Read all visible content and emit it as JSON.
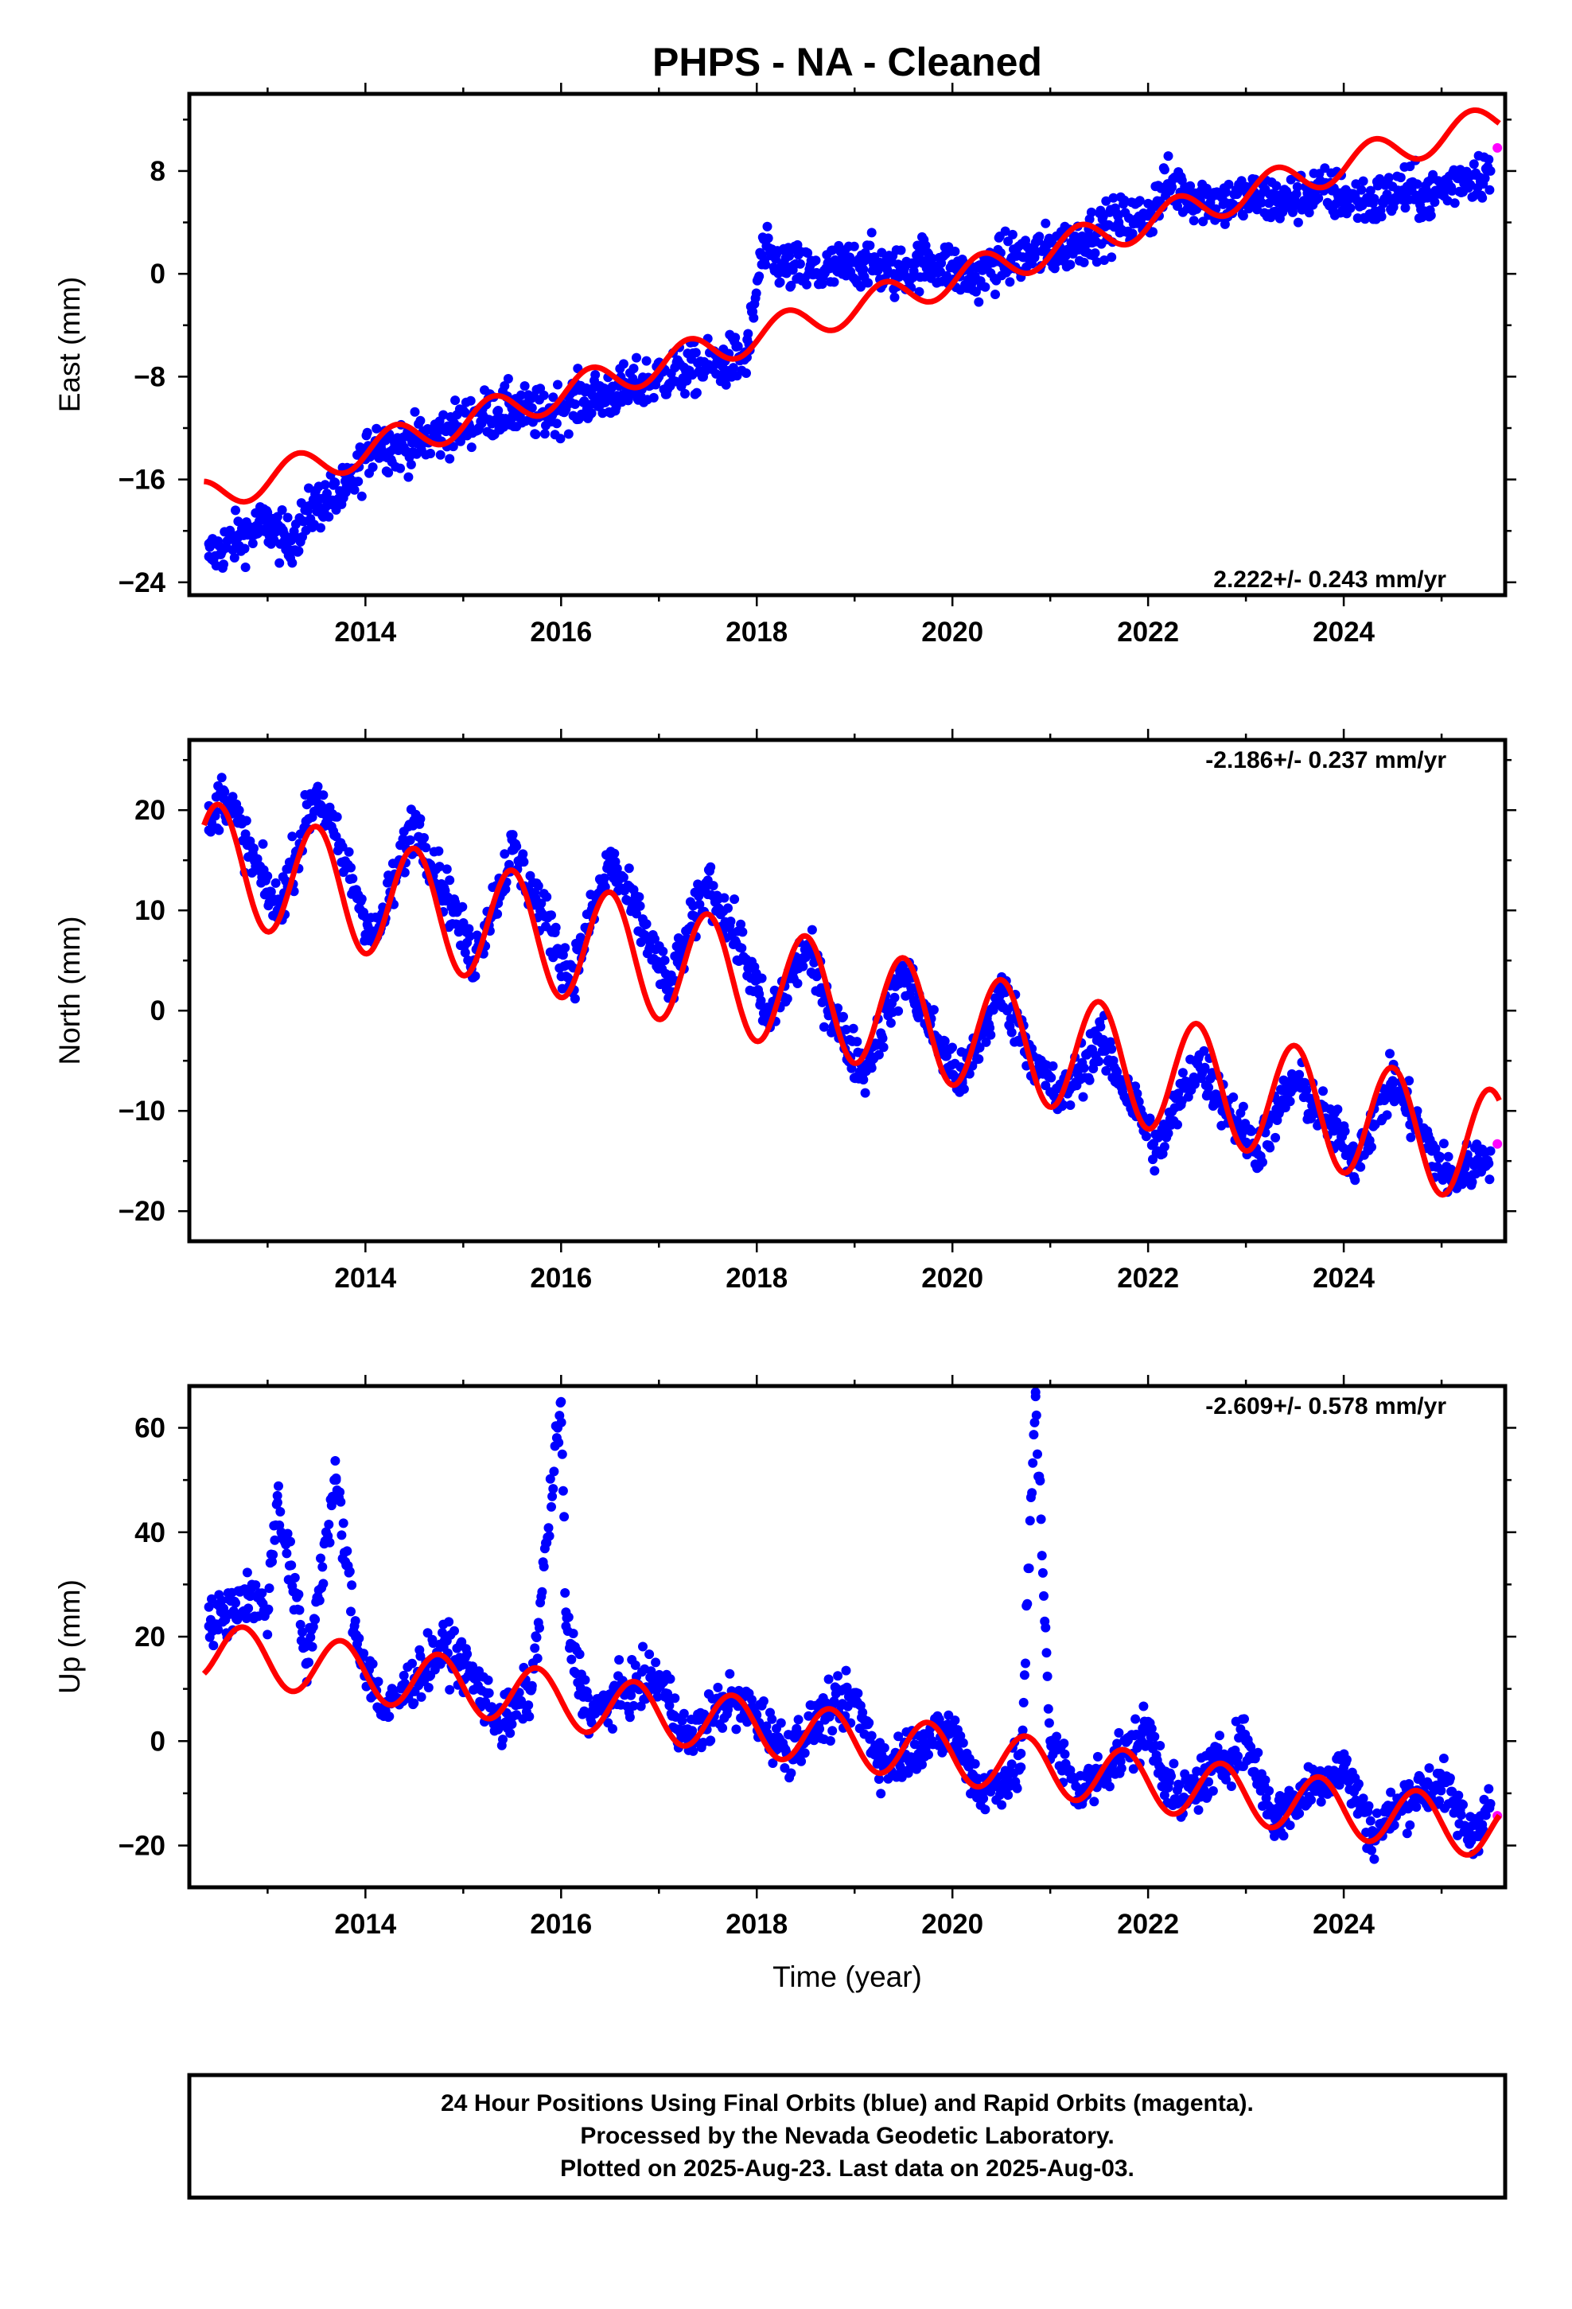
{
  "title": "PHPS  - NA - Cleaned",
  "colors": {
    "final_orbits": "#0000ff",
    "rapid_orbits": "#ff00ff",
    "model": "#ff0000",
    "frame": "#000000"
  },
  "chart_data": [
    {
      "type": "scatter",
      "component": "east",
      "ylabel": "East (mm)",
      "xlabel": "",
      "xlim": [
        2012.2,
        2025.65
      ],
      "ylim": [
        -25,
        14
      ],
      "yticks": [
        -24,
        -16,
        -8,
        0,
        8
      ],
      "yticklabels": [
        "−24",
        "−16",
        "−8",
        "0",
        "8"
      ],
      "xticks": [
        2014,
        2016,
        2018,
        2020,
        2022,
        2024
      ],
      "xticklabels": [
        "2014",
        "2016",
        "2018",
        "2020",
        "2022",
        "2024"
      ],
      "rate": "2.222+/- 0.243 mm/yr",
      "rate_position": "bottom-right",
      "series": [
        {
          "name": "Final Orbits",
          "color": "#0000ff",
          "x": [
            2012.4,
            2012.7,
            2013.0,
            2013.2,
            2013.5,
            2013.8,
            2014.1,
            2014.3,
            2014.6,
            2014.9,
            2015.2,
            2015.5,
            2015.8,
            2016.1,
            2016.4,
            2016.7,
            2017.0,
            2017.3,
            2017.6,
            2017.9,
            2018.05,
            2018.3,
            2018.6,
            2018.9,
            2019.1,
            2019.4,
            2019.7,
            2020.0,
            2020.2,
            2020.5,
            2020.8,
            2021.1,
            2021.4,
            2021.7,
            2022.0,
            2022.2,
            2022.5,
            2022.8,
            2023.1,
            2023.4,
            2023.7,
            2024.0,
            2024.3,
            2024.6,
            2024.9,
            2025.2,
            2025.5
          ],
          "y": [
            -22,
            -20.5,
            -19.5,
            -21,
            -18,
            -17,
            -13,
            -13.5,
            -13,
            -12,
            -11,
            -10.5,
            -11,
            -10,
            -9.5,
            -9,
            -8,
            -7.5,
            -7,
            -6.5,
            1.5,
            0.5,
            0,
            0.5,
            1,
            0,
            1,
            0.5,
            -0.5,
            1,
            1.5,
            2,
            3,
            4,
            4.5,
            7,
            6,
            5.5,
            6,
            5.5,
            6.5,
            6,
            5.5,
            6.5,
            6,
            7.5,
            8
          ]
        },
        {
          "name": "Rapid Orbits",
          "color": "#ff00ff",
          "x": [
            2025.57
          ],
          "y": [
            9.8
          ]
        },
        {
          "name": "Model",
          "color": "#ff0000",
          "model": {
            "t0": 2012.3,
            "intercept": -17.5,
            "rate": 2.222,
            "amplitude": 1.3,
            "phase_year": 0.3,
            "steps": [
              {
                "year": 2018.0,
                "offset": 0
              }
            ]
          }
        }
      ]
    },
    {
      "type": "scatter",
      "component": "north",
      "ylabel": "North (mm)",
      "xlabel": "",
      "xlim": [
        2012.2,
        2025.65
      ],
      "ylim": [
        -23,
        27
      ],
      "yticks": [
        -20,
        -10,
        0,
        10,
        20
      ],
      "yticklabels": [
        "−20",
        "−10",
        "0",
        "10",
        "20"
      ],
      "xticks": [
        2014,
        2016,
        2018,
        2020,
        2022,
        2024
      ],
      "xticklabels": [
        "2014",
        "2016",
        "2018",
        "2020",
        "2022",
        "2024"
      ],
      "rate": "-2.186+/- 0.237 mm/yr",
      "rate_position": "top-right",
      "series": [
        {
          "name": "Final Orbits",
          "color": "#0000ff",
          "x": [
            2012.4,
            2012.55,
            2012.9,
            2013.1,
            2013.5,
            2013.9,
            2014.1,
            2014.5,
            2014.9,
            2015.1,
            2015.5,
            2015.9,
            2016.1,
            2016.5,
            2016.9,
            2017.1,
            2017.5,
            2017.9,
            2018.1,
            2018.5,
            2018.9,
            2019.1,
            2019.5,
            2019.9,
            2020.1,
            2020.5,
            2020.9,
            2021.1,
            2021.5,
            2021.9,
            2022.1,
            2022.5,
            2022.9,
            2023.1,
            2023.5,
            2023.9,
            2024.1,
            2024.5,
            2024.9,
            2025.1,
            2025.5
          ],
          "y": [
            18,
            22,
            14,
            10,
            22,
            12,
            7,
            19,
            10,
            5,
            16,
            8,
            3,
            15,
            7,
            2,
            13,
            5,
            -1,
            6,
            -3,
            -6,
            4,
            -4,
            -7,
            2,
            -6,
            -9,
            -3,
            -10,
            -14,
            -5,
            -11,
            -14,
            -7,
            -12,
            -15,
            -7,
            -14,
            -17,
            -14
          ]
        },
        {
          "name": "Rapid Orbits",
          "color": "#ff00ff",
          "x": [
            2025.57
          ],
          "y": [
            -13.3
          ]
        },
        {
          "name": "Model",
          "color": "#ff0000",
          "model": {
            "t0": 2012.3,
            "intercept": 15.2,
            "rate": -2.186,
            "amplitude": 5.8,
            "phase_year": 0.5,
            "steps": []
          }
        }
      ]
    },
    {
      "type": "scatter",
      "component": "up",
      "ylabel": "Up (mm)",
      "xlabel": "Time (year)",
      "xlim": [
        2012.2,
        2025.65
      ],
      "ylim": [
        -28,
        68
      ],
      "yticks": [
        -20,
        0,
        20,
        40,
        60
      ],
      "yticklabels": [
        "−20",
        "0",
        "20",
        "40",
        "60"
      ],
      "xticks": [
        2014,
        2016,
        2018,
        2020,
        2022,
        2024
      ],
      "xticklabels": [
        "2014",
        "2016",
        "2018",
        "2020",
        "2022",
        "2024"
      ],
      "rate": "-2.609+/- 0.578 mm/yr",
      "rate_position": "top-right",
      "series": [
        {
          "name": "Final Orbits",
          "color": "#0000ff",
          "x": [
            2012.4,
            2012.8,
            2013.0,
            2013.1,
            2013.4,
            2013.7,
            2013.9,
            2014.2,
            2014.5,
            2014.8,
            2015.0,
            2015.4,
            2015.7,
            2016.0,
            2016.05,
            2016.3,
            2016.7,
            2017.0,
            2017.3,
            2017.7,
            2018.0,
            2018.3,
            2018.7,
            2019.0,
            2019.3,
            2019.7,
            2020.0,
            2020.3,
            2020.7,
            2020.85,
            2021.0,
            2021.3,
            2021.7,
            2022.0,
            2022.3,
            2022.7,
            2023.0,
            2023.3,
            2023.7,
            2024.0,
            2024.3,
            2024.7,
            2025.0,
            2025.3,
            2025.5
          ],
          "y": [
            22,
            28,
            25,
            47,
            15,
            50,
            20,
            5,
            12,
            18,
            15,
            3,
            10,
            65,
            22,
            5,
            10,
            12,
            0,
            8,
            5,
            -2,
            5,
            8,
            -5,
            0,
            2,
            -10,
            -5,
            66,
            0,
            -10,
            -3,
            2,
            -12,
            -5,
            0,
            -15,
            -8,
            -5,
            -18,
            -10,
            -8,
            -18,
            -12
          ]
        },
        {
          "name": "Rapid Orbits",
          "color": "#ff00ff",
          "x": [
            2025.57
          ],
          "y": [
            -14.3
          ]
        },
        {
          "name": "Model",
          "color": "#ff0000",
          "model": {
            "t0": 2012.3,
            "intercept": 17.5,
            "rate": -2.609,
            "amplitude": 5.5,
            "phase_year": 0.75,
            "steps": []
          }
        }
      ]
    }
  ],
  "footer": {
    "line1": "24 Hour Positions Using Final Orbits (blue) and Rapid Orbits (magenta).",
    "line2": "Processed by the Nevada Geodetic Laboratory.",
    "line3": "Plotted on 2025-Aug-23. Last data on 2025-Aug-03."
  }
}
